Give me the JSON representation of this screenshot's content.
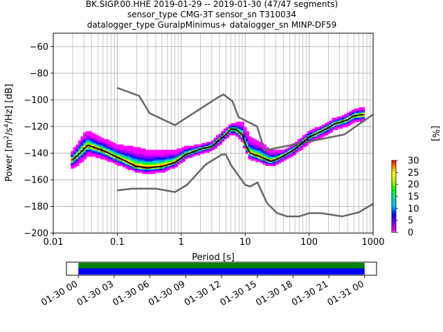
{
  "title_lines": [
    "BK.SIGP.00.HHE   2019-01-29 -- 2019-01-30  (47/47 segments)",
    "sensor_type CMG-3T sensor_sn T310034",
    "datalogger_type GuralpMinimus+ datalogger_sn MINP-DF59"
  ],
  "chart_data": {
    "type": "heatmap",
    "xlabel": "Period [s]",
    "ylabel": "Power [m²/s⁴/Hz] [dB]",
    "x_scale": "log",
    "xlim": [
      0.01,
      1000
    ],
    "ylim": [
      -200,
      -50
    ],
    "x_ticks": [
      0.01,
      0.1,
      1,
      10,
      100,
      1000
    ],
    "x_tick_labels": [
      "0.01",
      "0.1",
      "1",
      "10",
      "100",
      "1000"
    ],
    "y_ticks": [
      -200,
      -180,
      -160,
      -140,
      -120,
      -100,
      -80,
      -60
    ],
    "y_tick_labels": [
      "−200",
      "−180",
      "−160",
      "−140",
      "−120",
      "−100",
      "−80",
      "−60"
    ],
    "grid": true,
    "colorbar": {
      "label": "[%]",
      "range": [
        0,
        30
      ],
      "ticks": [
        0,
        5,
        10,
        15,
        20,
        25,
        30
      ]
    },
    "mode_curve": [
      [
        0.02,
        -145
      ],
      [
        0.025,
        -141
      ],
      [
        0.03,
        -137
      ],
      [
        0.035,
        -134
      ],
      [
        0.04,
        -135
      ],
      [
        0.06,
        -138
      ],
      [
        0.1,
        -143
      ],
      [
        0.15,
        -147
      ],
      [
        0.2,
        -150
      ],
      [
        0.3,
        -151
      ],
      [
        0.5,
        -150
      ],
      [
        0.8,
        -147
      ],
      [
        1.2,
        -141
      ],
      [
        2,
        -137
      ],
      [
        3,
        -135
      ],
      [
        4,
        -130
      ],
      [
        5,
        -126
      ],
      [
        6,
        -122
      ],
      [
        7,
        -122
      ],
      [
        9,
        -126
      ],
      [
        10,
        -133
      ],
      [
        12,
        -140
      ],
      [
        16,
        -142
      ],
      [
        20,
        -144
      ],
      [
        25,
        -146
      ],
      [
        30,
        -145
      ],
      [
        40,
        -142
      ],
      [
        60,
        -137
      ],
      [
        80,
        -132
      ],
      [
        100,
        -128
      ],
      [
        150,
        -124
      ],
      [
        200,
        -121
      ],
      [
        250,
        -118
      ],
      [
        300,
        -117
      ],
      [
        400,
        -115
      ],
      [
        500,
        -112
      ],
      [
        700,
        -111
      ]
    ],
    "nhnm": [
      [
        0.1,
        -91
      ],
      [
        0.22,
        -97
      ],
      [
        0.32,
        -110
      ],
      [
        0.8,
        -119
      ],
      [
        3.8,
        -98
      ],
      [
        4.6,
        -96
      ],
      [
        6.3,
        -101
      ],
      [
        7.9,
        -113
      ],
      [
        15.4,
        -120
      ],
      [
        20,
        -138
      ],
      [
        354.8,
        -126
      ],
      [
        1000,
        -111
      ]
    ],
    "nlnm": [
      [
        0.1,
        -168
      ],
      [
        0.17,
        -166.7
      ],
      [
        0.4,
        -166.7
      ],
      [
        0.8,
        -169.2
      ],
      [
        1.24,
        -163.7
      ],
      [
        2.4,
        -148.6
      ],
      [
        4.3,
        -141.1
      ],
      [
        5,
        -141.1
      ],
      [
        6,
        -149
      ],
      [
        10,
        -163.8
      ],
      [
        12,
        -165
      ],
      [
        15.6,
        -162
      ],
      [
        21.9,
        -177.5
      ],
      [
        31.6,
        -185
      ],
      [
        45,
        -187.5
      ],
      [
        70,
        -187.5
      ],
      [
        101,
        -185
      ],
      [
        154,
        -185
      ],
      [
        328,
        -187.5
      ],
      [
        600,
        -184.4
      ],
      [
        1000,
        -178
      ]
    ],
    "spread": [
      [
        0.02,
        -6,
        6
      ],
      [
        0.03,
        -8,
        11
      ],
      [
        0.05,
        -6,
        9
      ],
      [
        0.1,
        -5,
        9
      ],
      [
        0.2,
        -4,
        14
      ],
      [
        0.5,
        -4,
        12
      ],
      [
        1,
        -3,
        7
      ],
      [
        2,
        -3,
        3
      ],
      [
        5,
        -3,
        4
      ],
      [
        7,
        -4,
        4
      ],
      [
        10,
        -4,
        12
      ],
      [
        20,
        -4,
        10
      ],
      [
        40,
        -3,
        4
      ],
      [
        100,
        -4,
        4
      ],
      [
        300,
        -4,
        4
      ],
      [
        700,
        -5,
        5
      ]
    ]
  },
  "timeline": {
    "tick_labels": [
      "01-30 00",
      "01-30 03",
      "01-30 06",
      "01-30 09",
      "01-30 12",
      "01-30 15",
      "01-30 18",
      "01-30 21",
      "01-31 00"
    ],
    "range_hours": [
      -1,
      25
    ],
    "coverage_hours": [
      0,
      24
    ],
    "bar_colors": {
      "top": "#008000",
      "bottom": "#0000ff"
    }
  },
  "colors": {
    "model_lines": "#666666",
    "mode_line": "#000000",
    "grid": "#b0b0b0"
  }
}
